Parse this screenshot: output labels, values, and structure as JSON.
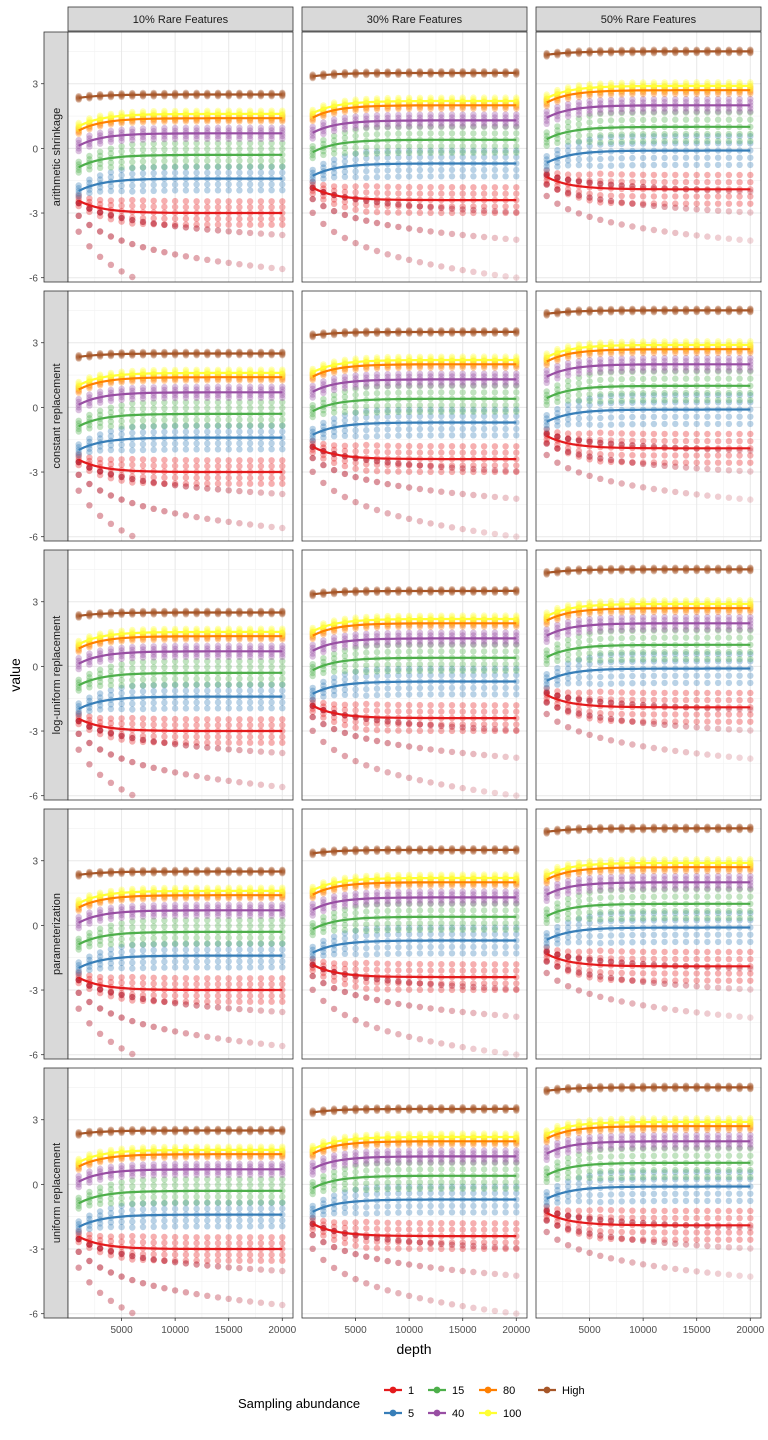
{
  "chart_data": {
    "type": "scatter",
    "xlabel": "depth",
    "ylabel": "value",
    "x_range": [
      0,
      21000
    ],
    "x_ticks": [
      5000,
      10000,
      15000,
      20000
    ],
    "y_range": [
      -6.2,
      5.4
    ],
    "y_ticks": [
      -6,
      -3,
      0,
      3
    ],
    "grid": true,
    "legend_position": "bottom",
    "columns": [
      "10% Rare Features",
      "30% Rare Features",
      "50% Rare Features"
    ],
    "rows": [
      "arithmetic shrinkage",
      "constant replacement",
      "log-uniform replacement",
      "parameterization",
      "uniform replacement"
    ],
    "legend": {
      "title": "Sampling abundance",
      "entries": [
        {
          "name": "1",
          "color": "#E41A1C"
        },
        {
          "name": "5",
          "color": "#377EB8"
        },
        {
          "name": "15",
          "color": "#4DAF4A"
        },
        {
          "name": "40",
          "color": "#984EA3"
        },
        {
          "name": "80",
          "color": "#FF7F00"
        },
        {
          "name": "100",
          "color": "#FFFF33"
        },
        {
          "name": "High",
          "color": "#A65628"
        }
      ]
    },
    "depth_samples": [
      1000,
      2000,
      3000,
      4000,
      5000,
      6000,
      7000,
      8000,
      9000,
      10000,
      11000,
      12000,
      13000,
      14000,
      15000,
      16000,
      17000,
      18000,
      19000,
      20000
    ],
    "trend_plateau_values": {
      "10% Rare Features": {
        "1": -3.0,
        "5": -1.4,
        "15": -0.3,
        "40": 0.7,
        "80": 1.4,
        "100": 1.6,
        "High": 2.5
      },
      "30% Rare Features": {
        "1": -2.4,
        "5": -0.7,
        "15": 0.4,
        "40": 1.3,
        "80": 2.0,
        "100": 2.2,
        "High": 3.5
      },
      "50% Rare Features": {
        "1": -1.9,
        "5": -0.1,
        "15": 1.0,
        "40": 2.0,
        "80": 2.7,
        "100": 2.9,
        "High": 4.5
      }
    }
  }
}
